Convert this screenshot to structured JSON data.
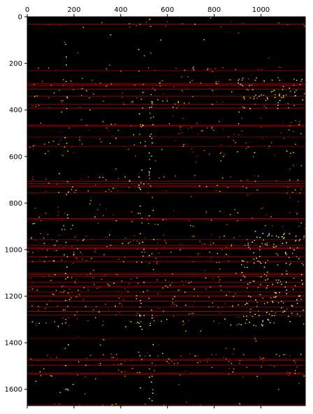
{
  "chart_data": {
    "type": "heatmap",
    "title": "",
    "xlabel": "",
    "ylabel": "",
    "colormap": "hot",
    "background_color": "#000000",
    "n_rows": 1670,
    "n_cols": 1190,
    "xlim": [
      0,
      1190
    ],
    "ylim": [
      1670,
      0
    ],
    "x_axis_position": "top",
    "x_ticks": [
      0,
      200,
      400,
      600,
      800,
      1000
    ],
    "x_tick_labels": [
      "0",
      "200",
      "400",
      "600",
      "800",
      "1000"
    ],
    "y_ticks": [
      0,
      200,
      400,
      600,
      800,
      1000,
      1200,
      1400,
      1600
    ],
    "y_tick_labels": [
      "0",
      "200",
      "400",
      "600",
      "800",
      "1000",
      "1200",
      "1400",
      "1600"
    ],
    "grid": false,
    "dense_row_bands": [
      {
        "start": 20,
        "end": 45,
        "intensity": 0.35
      },
      {
        "start": 215,
        "end": 235,
        "intensity": 0.45
      },
      {
        "start": 260,
        "end": 395,
        "intensity": 0.5
      },
      {
        "start": 440,
        "end": 600,
        "intensity": 0.35
      },
      {
        "start": 680,
        "end": 760,
        "intensity": 0.45
      },
      {
        "start": 820,
        "end": 900,
        "intensity": 0.4
      },
      {
        "start": 930,
        "end": 1060,
        "intensity": 0.6
      },
      {
        "start": 1100,
        "end": 1330,
        "intensity": 0.55
      },
      {
        "start": 1440,
        "end": 1545,
        "intensity": 0.5
      },
      {
        "start": 1660,
        "end": 1670,
        "intensity": 0.6
      }
    ],
    "hot_column_bands": [
      {
        "start": 160,
        "end": 175,
        "intensity": 0.6
      },
      {
        "start": 475,
        "end": 500,
        "intensity": 0.8
      },
      {
        "start": 520,
        "end": 540,
        "intensity": 0.7
      },
      {
        "start": 910,
        "end": 1190,
        "row_start": 900,
        "row_end": 1330,
        "intensity": 0.75
      },
      {
        "start": 910,
        "end": 1190,
        "row_start": 255,
        "row_end": 395,
        "intensity": 0.6
      }
    ]
  }
}
